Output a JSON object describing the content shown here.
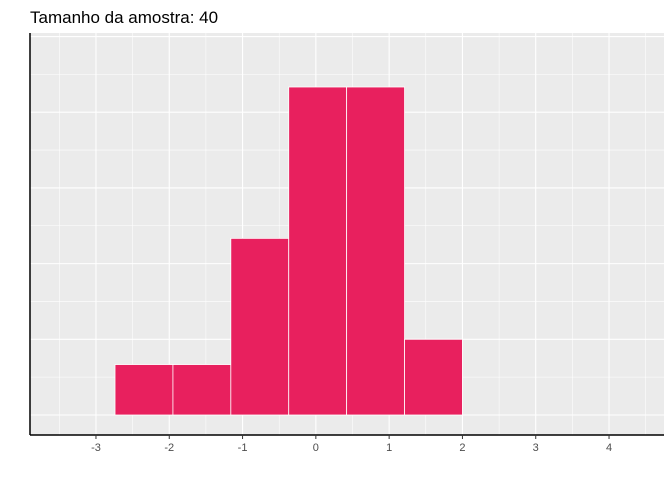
{
  "chart_data": {
    "type": "bar",
    "title": "Tamanho da amostra: 40",
    "xlabel": "",
    "ylabel": "",
    "x_ticks": [
      -3,
      -2,
      -1,
      0,
      1,
      2,
      3,
      4
    ],
    "xlim": [
      -3.9,
      4.75
    ],
    "ylim": [
      0,
      13
    ],
    "grid": true,
    "legend": "none",
    "bins": [
      {
        "x0": -2.74,
        "x1": -1.95,
        "count": 2
      },
      {
        "x0": -1.95,
        "x1": -1.16,
        "count": 2
      },
      {
        "x0": -1.16,
        "x1": -0.37,
        "count": 7
      },
      {
        "x0": -0.37,
        "x1": 0.42,
        "count": 13
      },
      {
        "x0": 0.42,
        "x1": 1.21,
        "count": 13
      },
      {
        "x0": 1.21,
        "x1": 2.0,
        "count": 3
      }
    ],
    "colors": {
      "bar_fill": "#E8205E",
      "bar_stroke": "#ffffff",
      "panel": "#EBEBEB",
      "grid": "#ffffff",
      "axis": "#000000",
      "tick_text": "#4d4d4d"
    }
  }
}
